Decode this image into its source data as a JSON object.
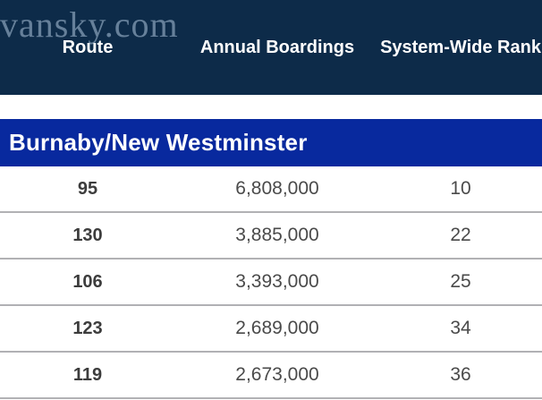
{
  "watermark": "vansky.com",
  "colors": {
    "header-bg": "#0d2b49",
    "section-bg": "#08299e",
    "watermark-color": "#66809a",
    "separator-color": "#b1b1b4",
    "route-color": "#3c3c3c",
    "value-color": "#4a4a4a"
  },
  "table": {
    "columns": [
      "Route",
      "Annual Boardings",
      "System-Wide Rank"
    ],
    "section": "Burnaby/New Westminster",
    "rows": [
      {
        "route": "95",
        "boardings": "6,808,000",
        "rank": "10"
      },
      {
        "route": "130",
        "boardings": "3,885,000",
        "rank": "22"
      },
      {
        "route": "106",
        "boardings": "3,393,000",
        "rank": "25"
      },
      {
        "route": "123",
        "boardings": "2,689,000",
        "rank": "34"
      },
      {
        "route": "119",
        "boardings": "2,673,000",
        "rank": "36"
      }
    ]
  },
  "chart_data": {
    "type": "table",
    "title": "Burnaby/New Westminster",
    "categories": [
      "95",
      "130",
      "106",
      "123",
      "119"
    ],
    "series": [
      {
        "name": "Annual Boardings",
        "values": [
          6808000,
          3885000,
          3393000,
          2689000,
          2673000
        ]
      },
      {
        "name": "System-Wide Rank",
        "values": [
          10,
          22,
          25,
          34,
          36
        ]
      }
    ]
  }
}
